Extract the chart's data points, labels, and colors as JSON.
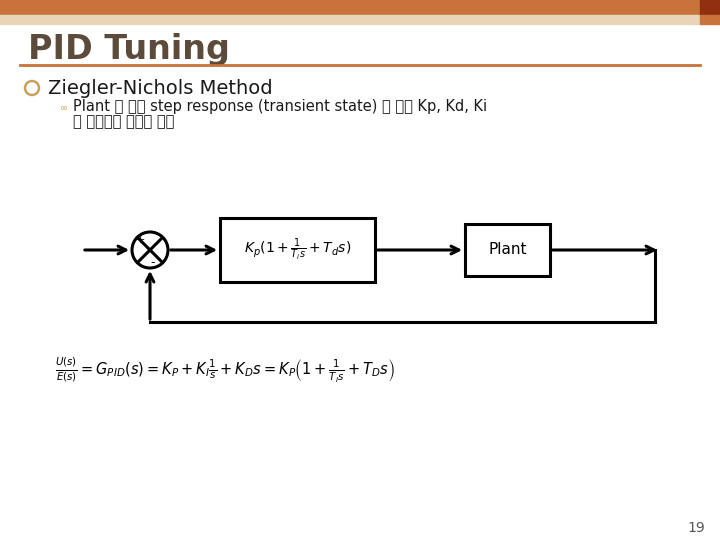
{
  "title": "PID Tuning",
  "header_bar_color": "#C8733A",
  "header_bar2_color": "#E8D5B8",
  "bg_color": "#FFFFFF",
  "title_color": "#5C4A3A",
  "bullet_color": "#C8A060",
  "sub_bullet_color": "#C8A060",
  "text_color": "#1A1A1A",
  "heading1": "Ziegler-Nichols Method",
  "bullet_text_line1": "Plant 에 대한 step response (transient state) 로 부터 Kp, Kd, Ki",
  "bullet_text_line2": "를 설정하는 실험적 방법",
  "slide_number": "19",
  "slide_num_color": "#555555",
  "controller_formula": "$K_p(1 + \\dfrac{1}{T_i s} + T_d s)$",
  "plant_label": "Plant",
  "formula_line": "$\\dfrac{U(s)}{E(s)} = G_{PID}(s) = K_P + K_I\\dfrac{1}{s} + K_D s = K_P\\left(1 + \\dfrac{1}{T_I s} + T_D s\\right)$"
}
